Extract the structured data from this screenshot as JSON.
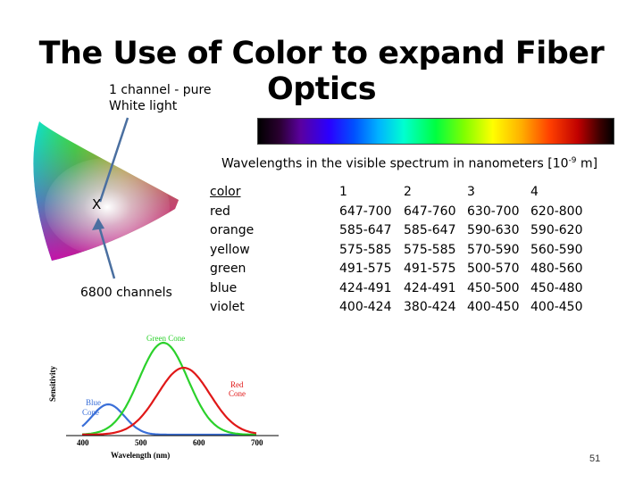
{
  "slide": {
    "title": "The Use of Color to expand Fiber Optics",
    "page_number": "51"
  },
  "annotations": {
    "one_channel_line1": "1 channel -  pure",
    "one_channel_line2": "White light",
    "x_mark": "X",
    "six_thousand_channels": "6800 channels"
  },
  "wavelength_caption": {
    "text": "Wavelengths in the visible spectrum in nanometers [10",
    "exponent": "-9",
    "unit_close": " m]"
  },
  "table": {
    "color_header": "color",
    "colors": [
      "red",
      "orange",
      "yellow",
      "green",
      "blue",
      "violet"
    ],
    "columns": [
      {
        "header": "1",
        "values": [
          "647-700",
          "585-647",
          "575-585",
          "491-575",
          "424-491",
          "400-424"
        ]
      },
      {
        "header": "2",
        "values": [
          "647-760",
          "585-647",
          "575-585",
          "491-575",
          "424-491",
          "380-424"
        ]
      },
      {
        "header": "3",
        "values": [
          "630-700",
          "590-630",
          "570-590",
          "500-570",
          "450-500",
          "400-450"
        ]
      },
      {
        "header": "4",
        "values": [
          "620-800",
          "590-620",
          "560-590",
          "480-560",
          "450-480",
          "400-450"
        ]
      }
    ]
  },
  "cone_chart": {
    "ylabel": "Sensitivity",
    "xlabel": "Wavelength (nm)",
    "x_ticks": [
      "400",
      "500",
      "600",
      "700"
    ],
    "labels": {
      "green_line1": "Green Cone",
      "red_line1": "Red",
      "red_line2": "Cone",
      "blue_line1": "Blue",
      "blue_line2": "Cone"
    },
    "colors": {
      "blue": "#3a6fd8",
      "green": "#2bd12b",
      "red": "#e01818"
    }
  }
}
